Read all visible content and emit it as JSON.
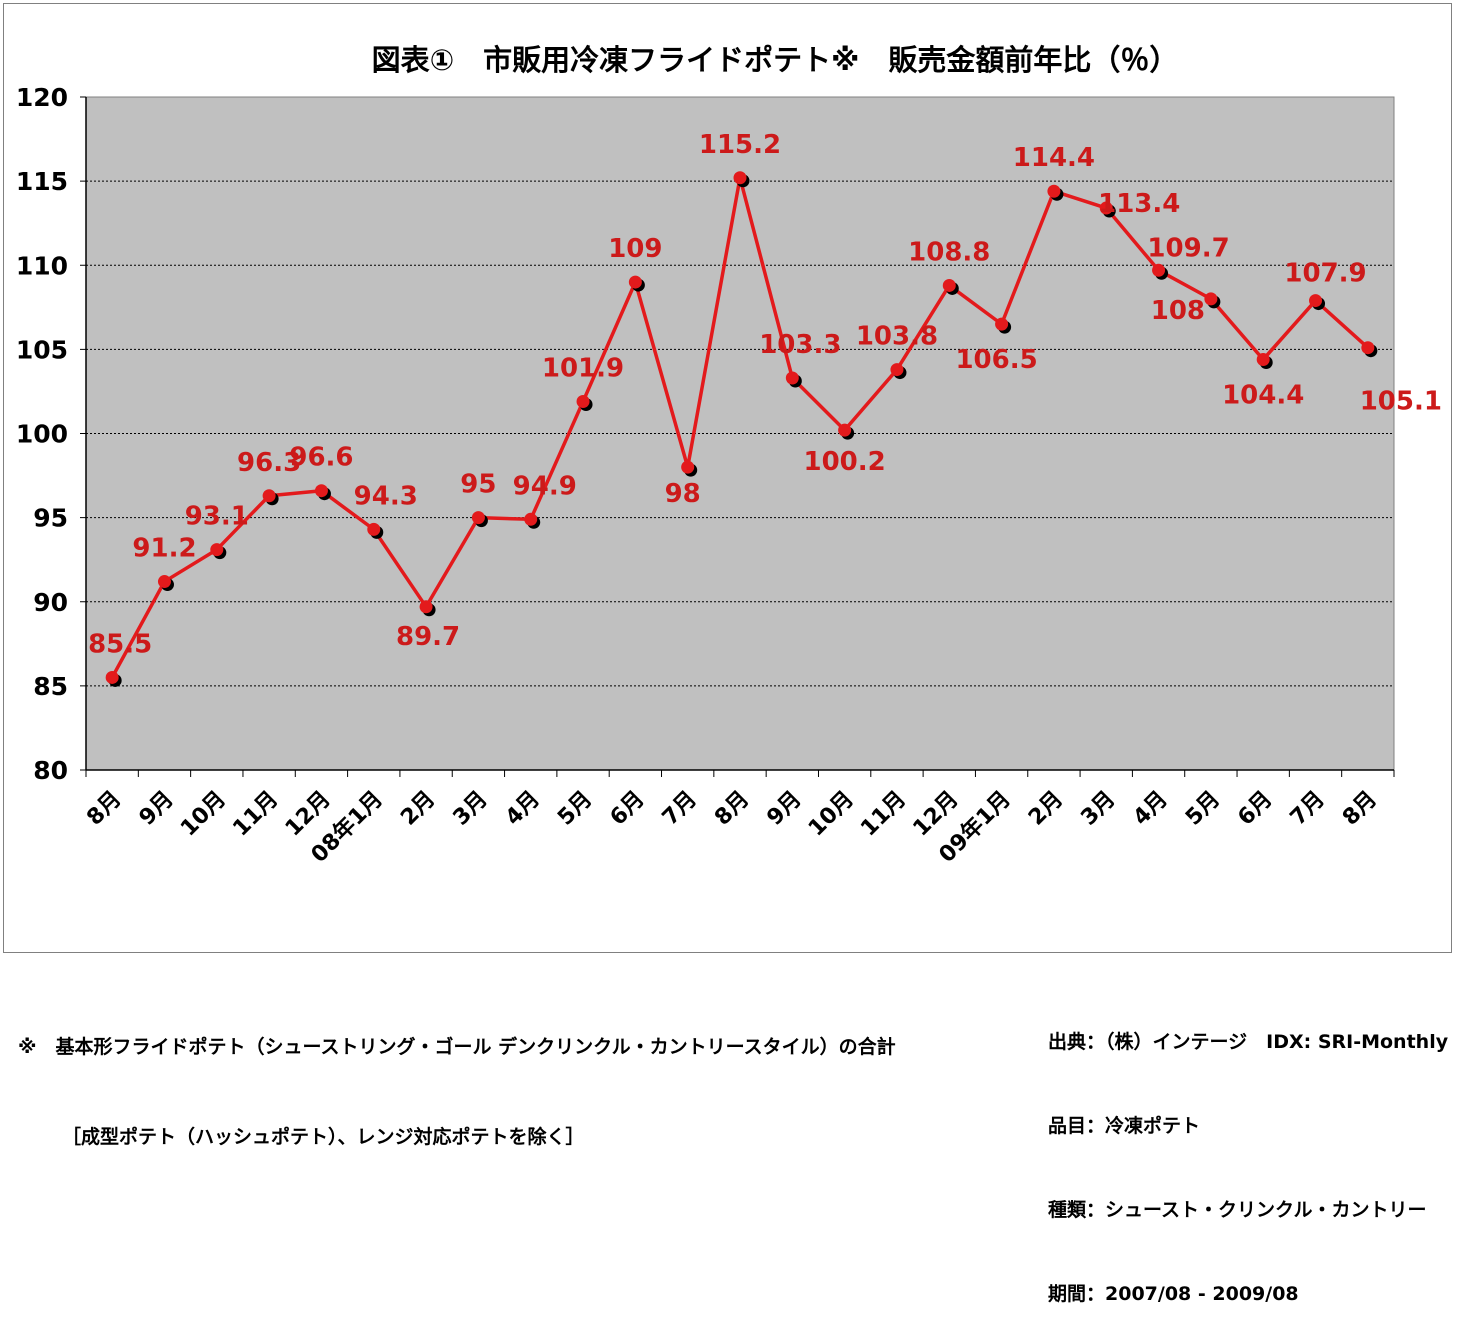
{
  "chart_data": {
    "type": "line",
    "title": "図表①　市販用冷凍フライドポテト※　販売金額前年比（％）",
    "xlabel": "",
    "ylabel": "",
    "ylim": [
      80,
      120
    ],
    "yticks": [
      "80",
      "85",
      "90",
      "95",
      "100",
      "105",
      "110",
      "115",
      "120"
    ],
    "grid": true,
    "categories": [
      "8月",
      "9月",
      "10月",
      "11月",
      "12月",
      "08年1月",
      "2月",
      "3月",
      "4月",
      "5月",
      "6月",
      "7月",
      "8月",
      "9月",
      "10月",
      "11月",
      "12月",
      "09年1月",
      "2月",
      "3月",
      "4月",
      "5月",
      "6月",
      "7月",
      "8月"
    ],
    "series": [
      {
        "values": [
          85.5,
          91.2,
          93.1,
          96.3,
          96.6,
          94.3,
          89.7,
          95,
          94.9,
          101.9,
          109,
          98,
          115.2,
          103.3,
          100.2,
          103.8,
          108.8,
          106.5,
          114.4,
          113.4,
          109.7,
          108,
          104.4,
          107.9,
          105.1
        ],
        "labels": [
          "85.5",
          "91.2",
          "93.1",
          "96.3",
          "96.6",
          "94.3",
          "89.7",
          "95",
          "94.9",
          "101.9",
          "109",
          "98",
          "115.2",
          "103.3",
          "100.2",
          "103.8",
          "108.8",
          "106.5",
          "114.4",
          "113.4",
          "109.7",
          "108",
          "104.4",
          "107.9",
          "105.1"
        ]
      }
    ],
    "colors": {
      "line": "#e31a1c",
      "label": "#cc1a1a",
      "plot_bg": "#c0c0c0",
      "marker_shadow": "#000000"
    }
  },
  "footnote": {
    "line1": "※　基本形フライドポテト（シューストリング・ゴール デンクリンクル・カントリースタイル）の合計",
    "line2": "［成型ポテト（ハッシュポテト）、レンジ対応ポテトを除く］"
  },
  "source": {
    "line1": "出典：（株）インテージ　IDX: SRI-Monthly",
    "line2": "品目：冷凍ポテト",
    "line3": "種類：シュースト・クリンクル・カントリー",
    "line4": "期間：2007/08 - 2009/08"
  }
}
